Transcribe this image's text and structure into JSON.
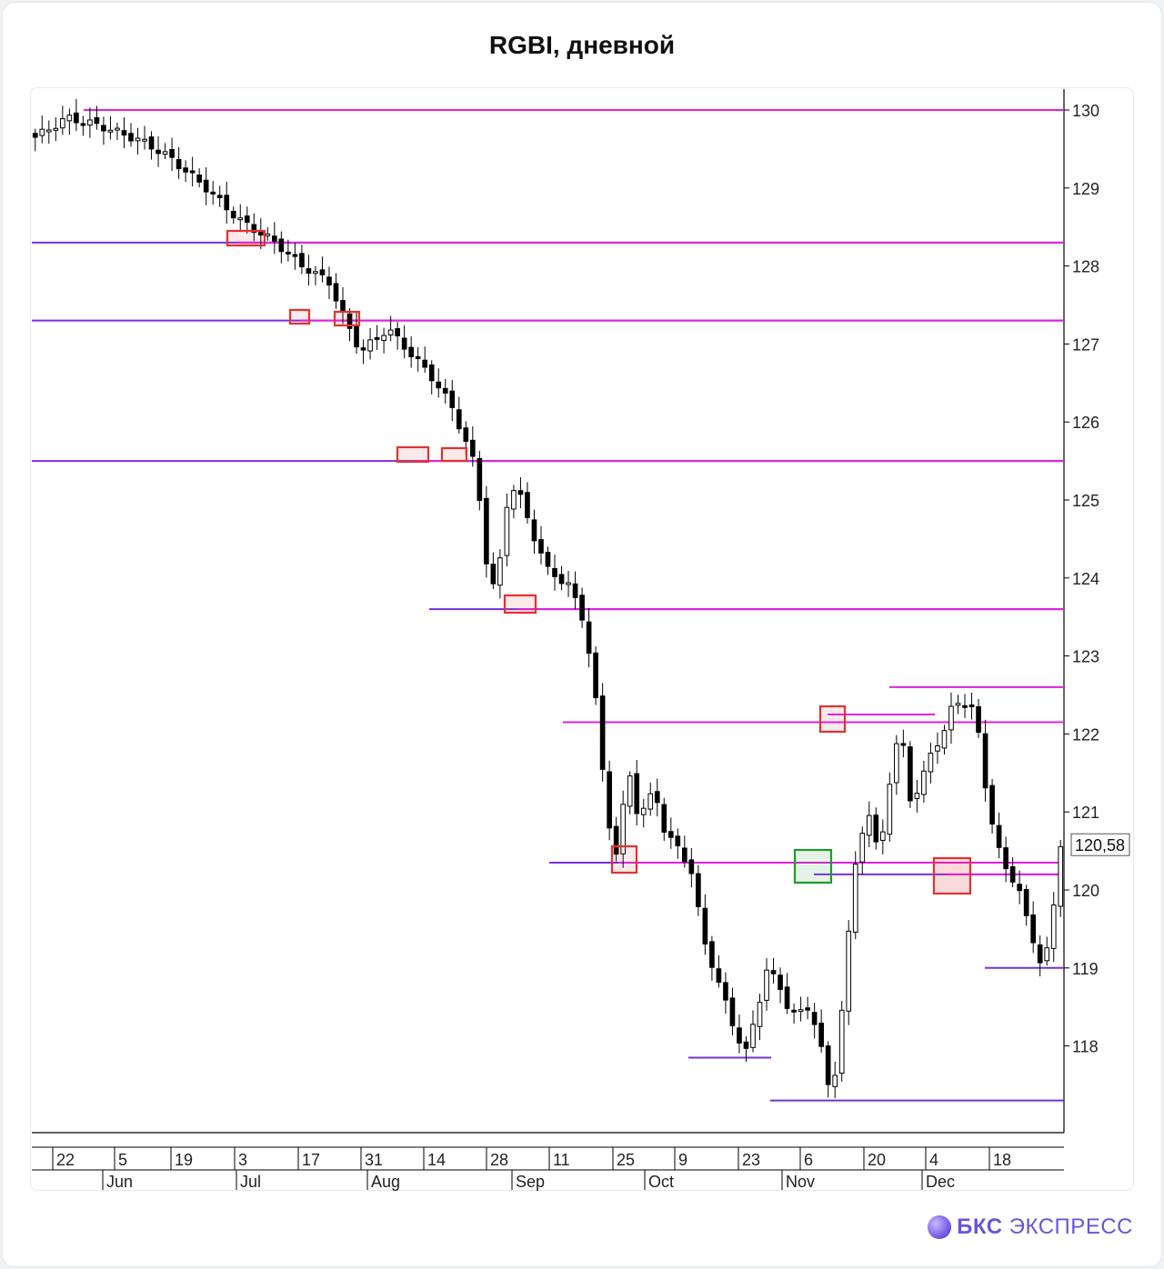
{
  "title": "RGBI, дневной",
  "brand": {
    "bold": "БКС",
    "rest": "ЭКСПРЕСС"
  },
  "colors": {
    "resistance": "#e020e0",
    "support": "#7a2ee0",
    "red_box": "#e53030",
    "green_box": "#1e9a2e",
    "candle_down": "#000000",
    "candle_up": "#ffffff"
  },
  "chart_data": {
    "type": "candlestick",
    "title": "RGBI, дневной",
    "ylim": [
      117.15,
      130.35
    ],
    "y_ticks": [
      118,
      119,
      120,
      121,
      122,
      123,
      124,
      125,
      126,
      127,
      128,
      129,
      130
    ],
    "last_price_label": "120,58",
    "last_price": 120.58,
    "x_day_ticks": [
      "22",
      "5",
      "19",
      "3",
      "17",
      "31",
      "14",
      "28",
      "11",
      "25",
      "9",
      "23",
      "6",
      "20",
      "4",
      "18"
    ],
    "x_month_labels": [
      "Jun",
      "Jul",
      "Aug",
      "Sep",
      "Oct",
      "Nov",
      "Dec"
    ],
    "sessions": 151,
    "path": [
      [
        0,
        129.65
      ],
      [
        6,
        129.9
      ],
      [
        12,
        129.8
      ],
      [
        20,
        129.6
      ],
      [
        25,
        129.4
      ],
      [
        32,
        129.0
      ],
      [
        38,
        128.6
      ],
      [
        45,
        128.3
      ],
      [
        50,
        128.0
      ],
      [
        55,
        127.8
      ],
      [
        58,
        127.3
      ],
      [
        61,
        126.9
      ],
      [
        66,
        127.2
      ],
      [
        70,
        126.9
      ],
      [
        74,
        126.6
      ],
      [
        78,
        126.2
      ],
      [
        82,
        125.5
      ],
      [
        84,
        124.7
      ],
      [
        85,
        123.7
      ],
      [
        87,
        124.2
      ],
      [
        88,
        124.9
      ],
      [
        90,
        125.2
      ],
      [
        93,
        124.6
      ],
      [
        96,
        124.1
      ],
      [
        100,
        123.9
      ],
      [
        103,
        123.4
      ],
      [
        105,
        122.4
      ],
      [
        107,
        121.0
      ],
      [
        109,
        120.4
      ],
      [
        111,
        121.6
      ],
      [
        113,
        120.9
      ],
      [
        116,
        121.3
      ],
      [
        118,
        120.7
      ],
      [
        121,
        120.5
      ],
      [
        123,
        120.2
      ],
      [
        125,
        119.4
      ],
      [
        127,
        119.0
      ],
      [
        129,
        118.6
      ],
      [
        131,
        118.2
      ],
      [
        133,
        117.9
      ],
      [
        135,
        118.4
      ],
      [
        137,
        119.0
      ],
      [
        139,
        118.8
      ],
      [
        141,
        118.5
      ],
      [
        143,
        118.4
      ],
      [
        145,
        118.5
      ],
      [
        147,
        118.1
      ],
      [
        148,
        117.4
      ],
      [
        150,
        117.7
      ],
      [
        152,
        119.2
      ],
      [
        154,
        120.6
      ],
      [
        156,
        121.0
      ],
      [
        158,
        120.4
      ],
      [
        160,
        121.4
      ],
      [
        162,
        122.1
      ],
      [
        164,
        121.1
      ],
      [
        166,
        121.4
      ],
      [
        168,
        121.8
      ],
      [
        170,
        122.0
      ],
      [
        172,
        122.4
      ],
      [
        174,
        122.4
      ],
      [
        176,
        122.3
      ],
      [
        178,
        121.3
      ],
      [
        180,
        120.6
      ],
      [
        182,
        120.2
      ],
      [
        184,
        120.1
      ],
      [
        186,
        119.5
      ],
      [
        188,
        119.1
      ],
      [
        190,
        119.3
      ],
      [
        192,
        120.58
      ]
    ],
    "resistance_lines": [
      130.0,
      128.3,
      127.3,
      125.5,
      123.6,
      122.2,
      122.6,
      120.35,
      120.2
    ],
    "support_lines": [
      119.0,
      117.3,
      117.8,
      127.3,
      128.3,
      125.5
    ]
  }
}
